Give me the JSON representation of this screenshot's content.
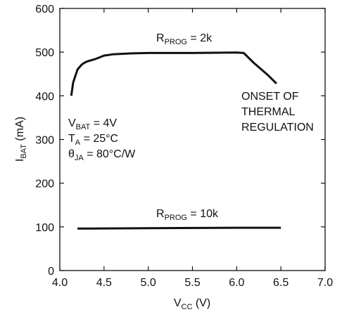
{
  "chart_data": {
    "type": "line",
    "xlim": [
      4.0,
      7.0
    ],
    "ylim": [
      0,
      600
    ],
    "x_ticks": [
      "4.0",
      "4.5",
      "5.0",
      "5.5",
      "6.0",
      "6.5",
      "7.0"
    ],
    "y_ticks": [
      "0",
      "100",
      "200",
      "300",
      "400",
      "500",
      "600"
    ],
    "xlabel": {
      "main": "V",
      "sub": "CC",
      "unit": " (V)"
    },
    "ylabel": {
      "main": "I",
      "sub": "BAT",
      "unit": " (mA)"
    },
    "grid": false,
    "series": [
      {
        "name_main": "R",
        "name_sub": "PROG",
        "name_tail": " = 2k",
        "points": [
          [
            4.13,
            400
          ],
          [
            4.15,
            430
          ],
          [
            4.2,
            460
          ],
          [
            4.25,
            472
          ],
          [
            4.3,
            478
          ],
          [
            4.4,
            484
          ],
          [
            4.5,
            492
          ],
          [
            4.6,
            495
          ],
          [
            4.8,
            497
          ],
          [
            5.0,
            498
          ],
          [
            5.5,
            498
          ],
          [
            6.0,
            499
          ],
          [
            6.08,
            498
          ],
          [
            6.2,
            474
          ],
          [
            6.35,
            448
          ],
          [
            6.45,
            428
          ]
        ]
      },
      {
        "name_main": "R",
        "name_sub": "PROG",
        "name_tail": " = 10k",
        "points": [
          [
            4.2,
            96
          ],
          [
            5.0,
            97
          ],
          [
            6.0,
            98
          ],
          [
            6.5,
            98
          ]
        ]
      }
    ],
    "annotations": {
      "thermal": [
        "ONSET OF",
        "THERMAL",
        "REGULATION"
      ],
      "conditions": [
        {
          "main": "V",
          "sub": "BAT",
          "tail": " = 4V"
        },
        {
          "main": "T",
          "sub": "A",
          "tail": " = 25°C"
        },
        {
          "main": "θ",
          "sub": "JA",
          "tail": " = 80°C/W"
        }
      ]
    }
  }
}
